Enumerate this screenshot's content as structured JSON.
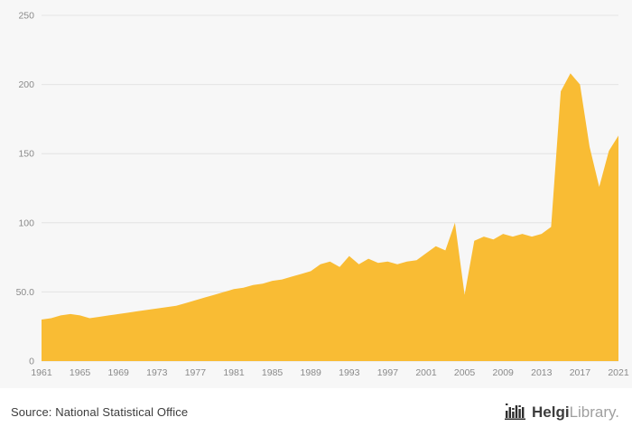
{
  "chart_data": {
    "type": "area",
    "title": "",
    "xlabel": "",
    "ylabel": "",
    "ylim": [
      0,
      250
    ],
    "grid": true,
    "legend": false,
    "series_color": "#F9BC34",
    "plot_background": "#f7f7f7",
    "gridline_color": "#e4e4e4",
    "tick_color": "#8a8a8a",
    "y_ticks": [
      0,
      50,
      100,
      150,
      200,
      250
    ],
    "y_tick_labels": [
      "0",
      "50.0",
      "100",
      "150",
      "200",
      "250"
    ],
    "x_tick_years": [
      1961,
      1965,
      1969,
      1973,
      1977,
      1981,
      1985,
      1989,
      1993,
      1997,
      2001,
      2005,
      2009,
      2013,
      2017,
      2021
    ],
    "x": [
      1961,
      1962,
      1963,
      1964,
      1965,
      1966,
      1967,
      1968,
      1969,
      1970,
      1971,
      1972,
      1973,
      1974,
      1975,
      1976,
      1977,
      1978,
      1979,
      1980,
      1981,
      1982,
      1983,
      1984,
      1985,
      1986,
      1987,
      1988,
      1989,
      1990,
      1991,
      1992,
      1993,
      1994,
      1995,
      1996,
      1997,
      1998,
      1999,
      2000,
      2001,
      2002,
      2003,
      2004,
      2005,
      2006,
      2007,
      2008,
      2009,
      2010,
      2011,
      2012,
      2013,
      2014,
      2015,
      2016,
      2017,
      2018,
      2019,
      2020,
      2021
    ],
    "values": [
      30,
      31,
      33,
      34,
      33,
      31,
      32,
      33,
      34,
      35,
      36,
      37,
      38,
      39,
      40,
      42,
      44,
      46,
      48,
      50,
      52,
      53,
      55,
      56,
      58,
      59,
      61,
      63,
      65,
      70,
      72,
      68,
      76,
      70,
      74,
      71,
      72,
      70,
      72,
      73,
      78,
      83,
      80,
      100,
      48,
      87,
      90,
      88,
      92,
      90,
      92,
      90,
      92,
      97,
      195,
      208,
      200,
      155,
      126,
      152,
      163
    ]
  },
  "footer": {
    "source": "Source: National Statistical Office",
    "logo": {
      "part1": "Helgi",
      "part2": "Library."
    }
  }
}
